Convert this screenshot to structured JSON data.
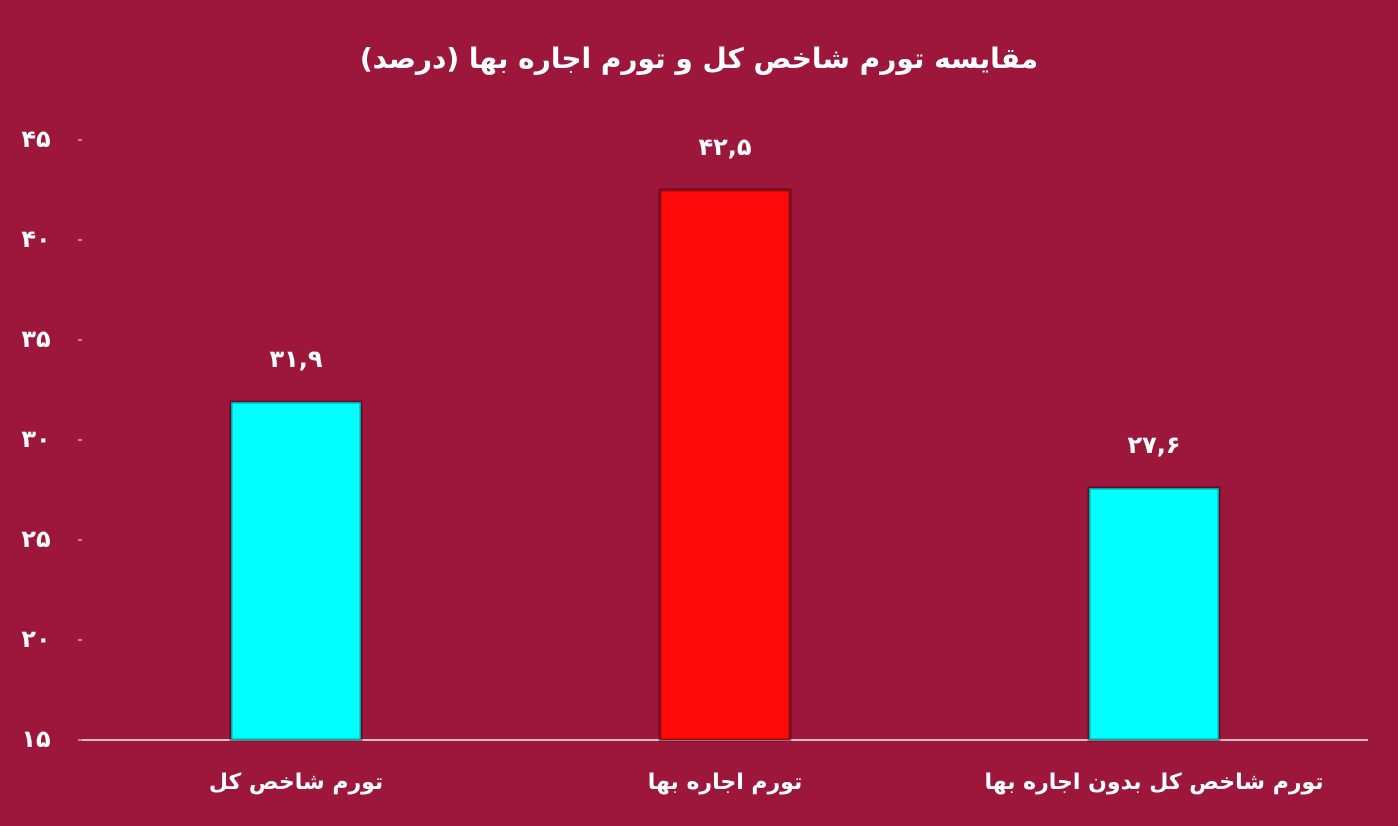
{
  "chart_data": {
    "type": "bar",
    "title": "مقایسه تورم شاخص کل و تورم اجاره بها (درصد)",
    "categories": [
      "تورم شاخص کل",
      "تورم اجاره بها",
      "تورم شاخص کل بدون اجاره بها"
    ],
    "values": [
      31.9,
      42.5,
      27.6
    ],
    "value_labels": [
      "۳۱,۹",
      "۴۲,۵",
      "۲۷,۶"
    ],
    "colors": [
      "#00ffff",
      "#ff0a0a",
      "#00ffff"
    ],
    "ylim": [
      15,
      45
    ],
    "yticks": [
      {
        "value": 15,
        "label": "۱۵"
      },
      {
        "value": 20,
        "label": "۲۰"
      },
      {
        "value": 25,
        "label": "۲۵"
      },
      {
        "value": 30,
        "label": "۳۰"
      },
      {
        "value": 35,
        "label": "۳۵"
      },
      {
        "value": 40,
        "label": "۴۰"
      },
      {
        "value": 45,
        "label": "۴۵"
      }
    ]
  }
}
